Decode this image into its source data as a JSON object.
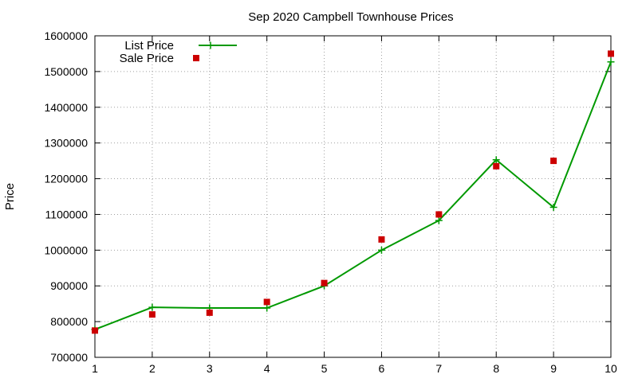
{
  "chart_data": {
    "type": "line",
    "title": "Sep 2020 Campbell Townhouse Prices",
    "xlabel": "",
    "ylabel": "Price",
    "xlim": [
      1,
      10
    ],
    "ylim": [
      700000,
      1600000
    ],
    "x_ticks": [
      "1",
      "2",
      "3",
      "4",
      "5",
      "6",
      "7",
      "8",
      "9",
      "10"
    ],
    "y_ticks": [
      "700000",
      "800000",
      "900000",
      "1000000",
      "1100000",
      "1200000",
      "1300000",
      "1400000",
      "1500000",
      "1600000"
    ],
    "x": [
      1,
      2,
      3,
      4,
      5,
      6,
      7,
      8,
      9,
      10
    ],
    "grid": true,
    "legend_position": "top-left",
    "series": [
      {
        "name": "List Price",
        "style": "line-with-plus-markers",
        "color": "#009900",
        "values": [
          778000,
          840000,
          838000,
          838000,
          900000,
          1000000,
          1083000,
          1253000,
          1120000,
          1527000
        ]
      },
      {
        "name": "Sale Price",
        "style": "square-markers",
        "color": "#cc0000",
        "values": [
          775000,
          820000,
          825000,
          855000,
          908000,
          1030000,
          1100000,
          1235000,
          1250000,
          1550000
        ]
      }
    ]
  }
}
